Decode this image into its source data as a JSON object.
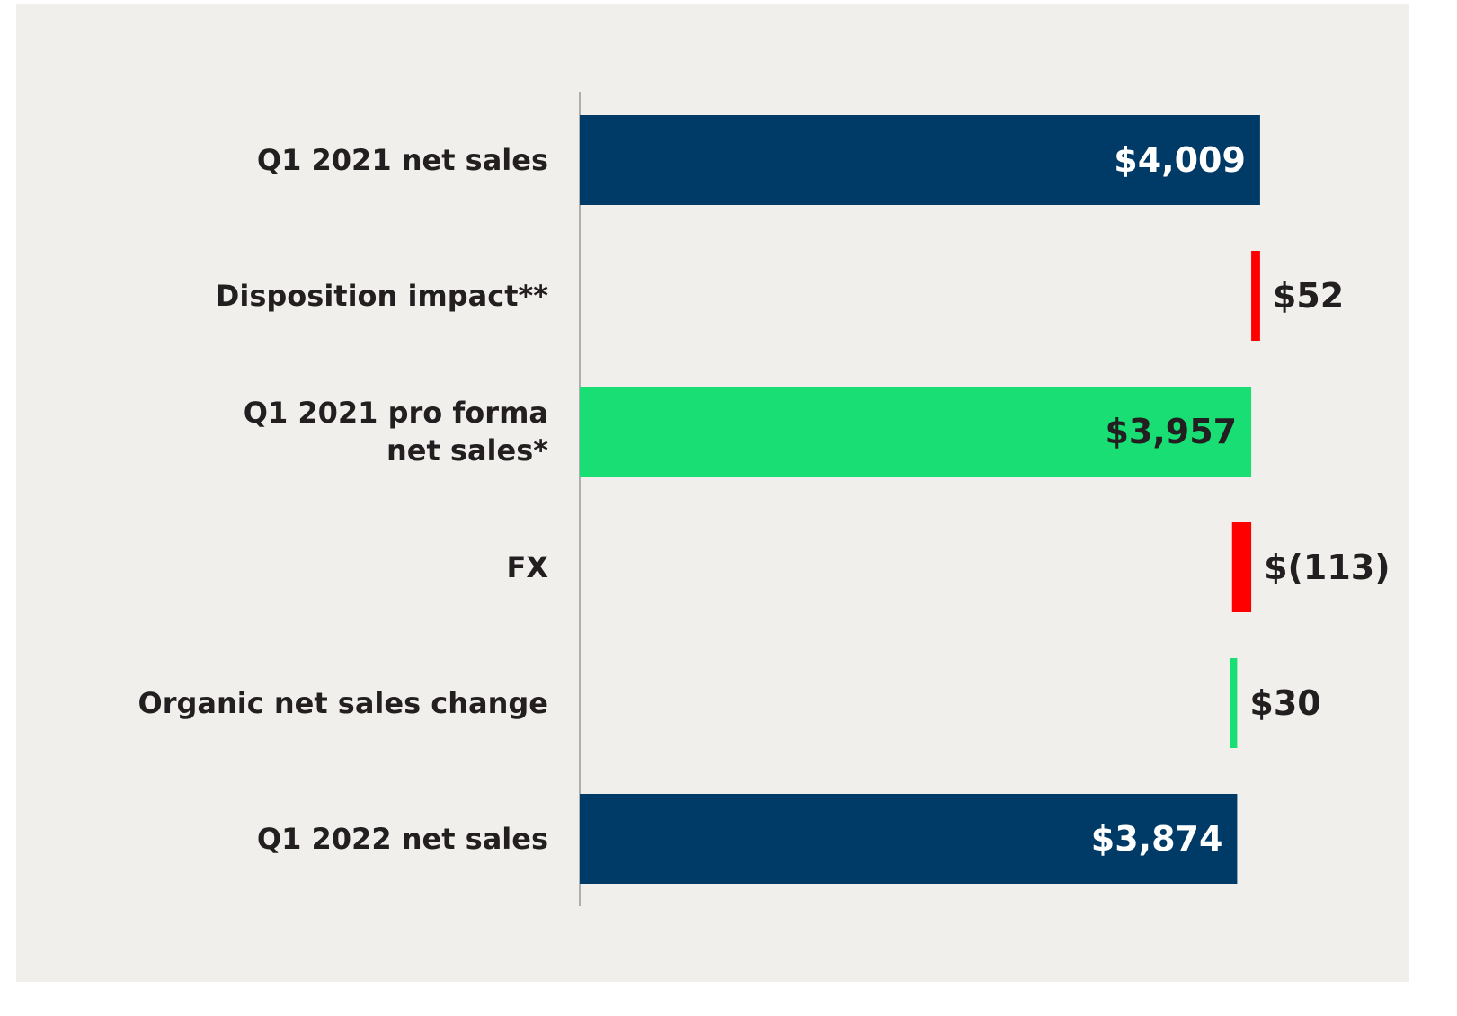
{
  "chart_data": {
    "type": "waterfall",
    "orientation": "horizontal",
    "categories": [
      "Q1 2021 net sales",
      "Disposition impact**",
      "Q1 2021 pro forma\nnet sales*",
      "FX",
      "Organic net sales change",
      "Q1 2022 net sales"
    ],
    "values": [
      4009,
      -52,
      3957,
      -113,
      30,
      3874
    ],
    "value_labels": [
      "$4,009",
      "$52",
      "$3,957",
      "$(113)",
      "$30",
      "$3,874"
    ],
    "measures": [
      "total",
      "relative",
      "total",
      "relative",
      "relative",
      "total"
    ],
    "colors": [
      "#003a66",
      "#ff0000",
      "#18de74",
      "#ff0000",
      "#18de74",
      "#003a66"
    ],
    "xlim": [
      0,
      5000
    ]
  }
}
